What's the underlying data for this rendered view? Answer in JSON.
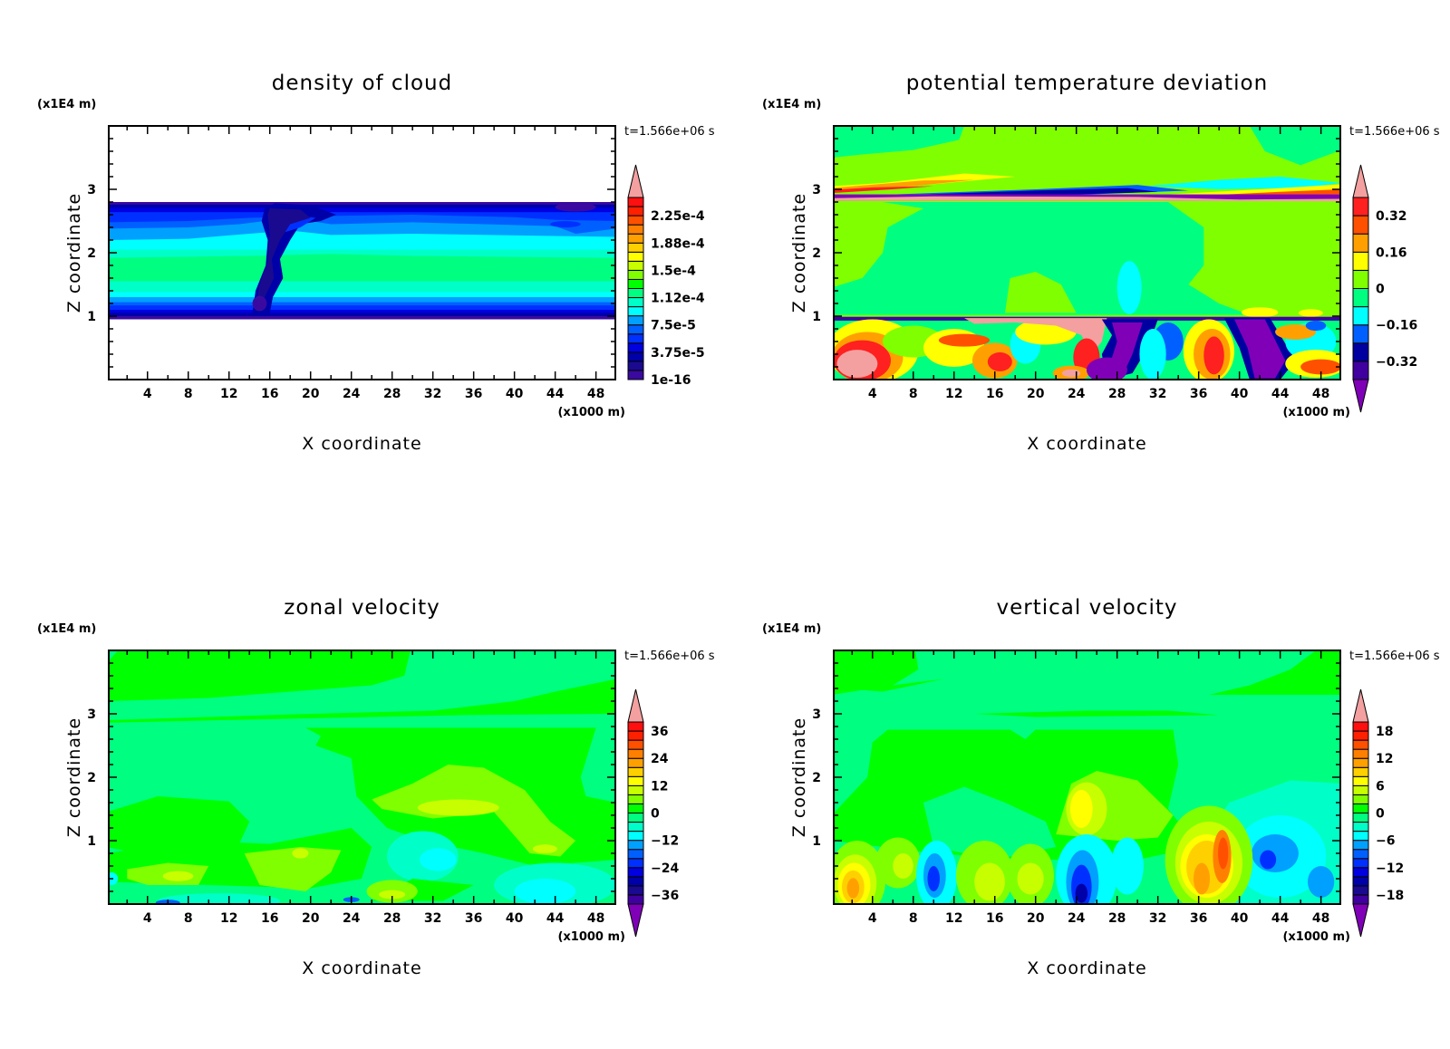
{
  "chart_data": [
    {
      "type": "heatmap",
      "title": "density of cloud",
      "xlabel": "X coordinate",
      "ylabel": "Z coordinate",
      "x_unit": "(x1000 m)",
      "y_unit": "(x1E4 m)",
      "time_label": "t=1.566e+06 s",
      "xlim": [
        0,
        50
      ],
      "ylim": [
        0,
        4
      ],
      "x_ticks": [
        "4",
        "8",
        "12",
        "16",
        "20",
        "24",
        "28",
        "32",
        "36",
        "40",
        "44",
        "48"
      ],
      "y_ticks": [
        "1",
        "2",
        "3"
      ],
      "colorbar": {
        "range": [
          0,
          0.00025
        ],
        "extend": "max",
        "labels": [
          "1e-16",
          "3.75e-5",
          "7.5e-5",
          "1.12e-4",
          "1.5e-4",
          "1.88e-4",
          "2.25e-4"
        ],
        "label_values": [
          0,
          3.75e-05,
          7.5e-05,
          0.0001125,
          0.00015,
          0.0001875,
          0.000225
        ],
        "colors": [
          "#3a0aa0",
          "#1a0a90",
          "#0000a8",
          "#0000e0",
          "#0030ff",
          "#0060ff",
          "#00a0ff",
          "#00ffff",
          "#00ffc8",
          "#00ff80",
          "#00ff00",
          "#80ff00",
          "#c8ff00",
          "#ffff00",
          "#ffd000",
          "#ffa000",
          "#ff8000",
          "#ff5000",
          "#ff2000",
          "#ff1010"
        ],
        "over_color": "#f4a0a0"
      }
    },
    {
      "type": "heatmap",
      "title": "potential temperature deviation",
      "xlabel": "X coordinate",
      "ylabel": "Z coordinate",
      "x_unit": "(x1000 m)",
      "y_unit": "(x1E4 m)",
      "time_label": "t=1.566e+06 s",
      "xlim": [
        0,
        50
      ],
      "ylim": [
        0,
        4
      ],
      "x_ticks": [
        "4",
        "8",
        "12",
        "16",
        "20",
        "24",
        "28",
        "32",
        "36",
        "40",
        "44",
        "48"
      ],
      "y_ticks": [
        "1",
        "2",
        "3"
      ],
      "colorbar": {
        "range": [
          -0.4,
          0.4
        ],
        "extend": "both",
        "labels": [
          "-0.32",
          "-0.16",
          "0",
          "0.16",
          "0.32"
        ],
        "label_values": [
          -0.32,
          -0.16,
          0,
          0.16,
          0.32
        ],
        "colors": [
          "#4000a0",
          "#0000a0",
          "#0060ff",
          "#00ffff",
          "#00ff80",
          "#80ff00",
          "#ffff00",
          "#ffa000",
          "#ff5000",
          "#ff2020"
        ],
        "over_color": "#f4a0a0",
        "under_color": "#8000b8"
      }
    },
    {
      "type": "heatmap",
      "title": "zonal velocity",
      "xlabel": "X coordinate",
      "ylabel": "Z coordinate",
      "x_unit": "(x1000 m)",
      "y_unit": "(x1E4 m)",
      "time_label": "t=1.566e+06 s",
      "xlim": [
        0,
        50
      ],
      "ylim": [
        0,
        4
      ],
      "x_ticks": [
        "4",
        "8",
        "12",
        "16",
        "20",
        "24",
        "28",
        "32",
        "36",
        "40",
        "44",
        "48"
      ],
      "y_ticks": [
        "1",
        "2",
        "3"
      ],
      "colorbar": {
        "range": [
          -40,
          40
        ],
        "extend": "both",
        "labels": [
          "-36",
          "-24",
          "-12",
          "0",
          "12",
          "24",
          "36"
        ],
        "label_values": [
          -36,
          -24,
          -12,
          0,
          12,
          24,
          36
        ],
        "colors": [
          "#4000a0",
          "#1a0a90",
          "#0000a8",
          "#0000e0",
          "#0030ff",
          "#0060ff",
          "#00a0ff",
          "#00ffff",
          "#00ffc8",
          "#00ff80",
          "#00ff00",
          "#80ff00",
          "#c8ff00",
          "#ffff00",
          "#ffd000",
          "#ffa000",
          "#ff8000",
          "#ff5000",
          "#ff2000",
          "#ff1010"
        ],
        "over_color": "#f4a0a0",
        "under_color": "#8000b8"
      }
    },
    {
      "type": "heatmap",
      "title": "vertical velocity",
      "xlabel": "X coordinate",
      "ylabel": "Z coordinate",
      "x_unit": "(x1000 m)",
      "y_unit": "(x1E4 m)",
      "time_label": "t=1.566e+06 s",
      "xlim": [
        0,
        50
      ],
      "ylim": [
        0,
        4
      ],
      "x_ticks": [
        "4",
        "8",
        "12",
        "16",
        "20",
        "24",
        "28",
        "32",
        "36",
        "40",
        "44",
        "48"
      ],
      "y_ticks": [
        "1",
        "2",
        "3"
      ],
      "colorbar": {
        "range": [
          -20,
          20
        ],
        "extend": "both",
        "labels": [
          "-18",
          "-12",
          "-6",
          "0",
          "6",
          "12",
          "18"
        ],
        "label_values": [
          -18,
          -12,
          -6,
          0,
          6,
          12,
          18
        ],
        "colors": [
          "#4000a0",
          "#1a0a90",
          "#0000a8",
          "#0000e0",
          "#0030ff",
          "#0060ff",
          "#00a0ff",
          "#00ffff",
          "#00ffc8",
          "#00ff80",
          "#00ff00",
          "#80ff00",
          "#c8ff00",
          "#ffff00",
          "#ffd000",
          "#ffa000",
          "#ff8000",
          "#ff5000",
          "#ff2000",
          "#ff1010"
        ],
        "over_color": "#f4a0a0",
        "under_color": "#8000b8"
      }
    }
  ]
}
